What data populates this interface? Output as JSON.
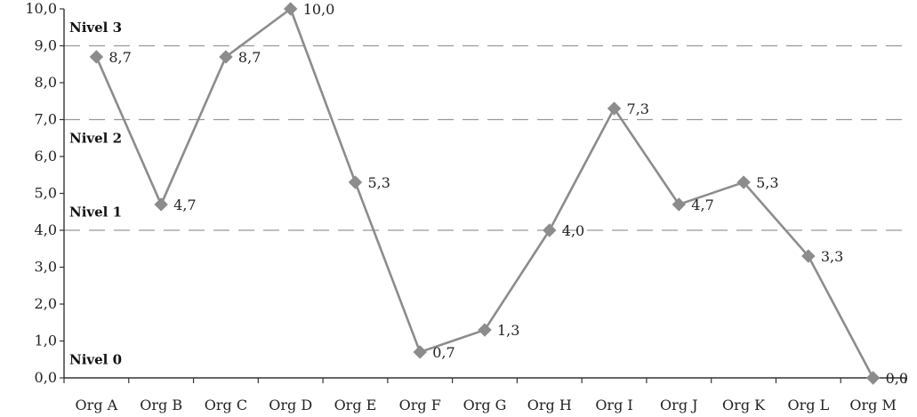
{
  "chart_data": {
    "type": "line",
    "title": "",
    "xlabel": "",
    "ylabel": "",
    "categories": [
      "Org A",
      "Org B",
      "Org C",
      "Org D",
      "Org E",
      "Org F",
      "Org G",
      "Org H",
      "Org I",
      "Org J",
      "Org K",
      "Org L",
      "Org M"
    ],
    "series": [
      {
        "values": [
          8.7,
          4.7,
          8.7,
          10.0,
          5.3,
          0.7,
          1.3,
          4.0,
          7.3,
          4.7,
          5.3,
          3.3,
          0.0
        ],
        "data_labels": [
          "8,7",
          "4,7",
          "8,7",
          "10,0",
          "5,3",
          "0,7",
          "1,3",
          "4,0",
          "7,3",
          "4,7",
          "5,3",
          "3,3",
          "0,0"
        ],
        "color": "#8c8c8c",
        "marker": "diamond"
      }
    ],
    "ylim": [
      0,
      10
    ],
    "yticks": [
      0,
      1,
      2,
      3,
      4,
      5,
      6,
      7,
      8,
      9,
      10
    ],
    "ytick_labels": [
      "0,0",
      "1,0",
      "2,0",
      "3,0",
      "4,0",
      "5,0",
      "6,0",
      "7,0",
      "8,0",
      "9,0",
      "10,0"
    ],
    "grid": false,
    "level_lines": [
      4,
      7,
      9
    ],
    "level_labels": [
      {
        "text": "Nivel 3",
        "y": 9.5
      },
      {
        "text": "Nivel 2",
        "y": 6.5
      },
      {
        "text": "Nivel 1",
        "y": 4.5
      },
      {
        "text": "Nivel 0",
        "y": 0.5
      }
    ],
    "legend": "none"
  }
}
